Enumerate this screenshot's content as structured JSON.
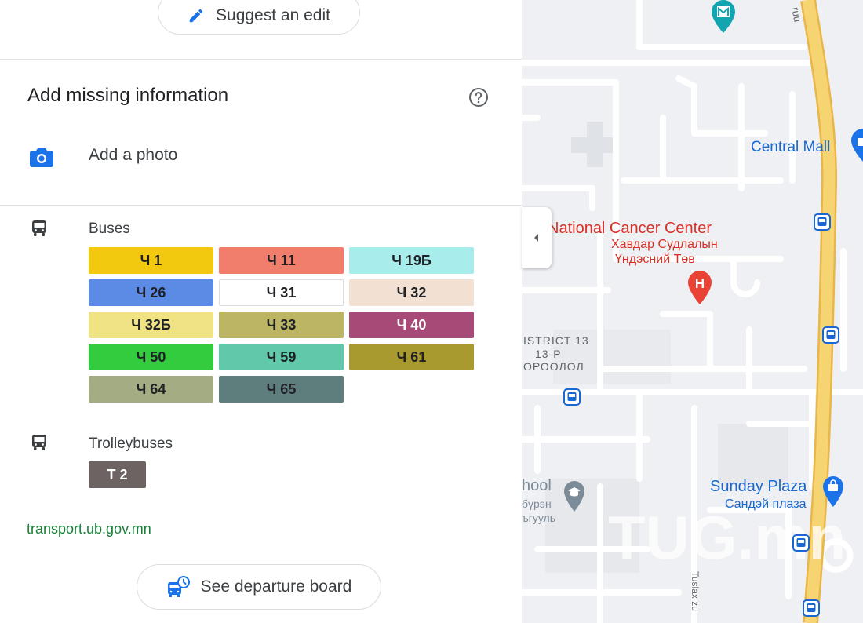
{
  "panel": {
    "suggest_edit_label": "Suggest an edit",
    "missing_info_title": "Add missing information",
    "add_photo_label": "Add a photo",
    "buses_label": "Buses",
    "buses": [
      {
        "label": "Ч 1",
        "bg": "#f2c90f",
        "fg": "#202124"
      },
      {
        "label": "Ч 11",
        "bg": "#f17d6d",
        "fg": "#202124"
      },
      {
        "label": "Ч 19Б",
        "bg": "#a8ecec",
        "fg": "#202124"
      },
      {
        "label": "Ч 26",
        "bg": "#5b8be5",
        "fg": "#202124"
      },
      {
        "label": "Ч 31",
        "bg": "#ffffff",
        "fg": "#202124",
        "border": "#dadce0"
      },
      {
        "label": "Ч 32",
        "bg": "#f2e0d2",
        "fg": "#202124"
      },
      {
        "label": "Ч 32Б",
        "bg": "#efe383",
        "fg": "#202124"
      },
      {
        "label": "Ч 33",
        "bg": "#bcb563",
        "fg": "#202124"
      },
      {
        "label": "Ч 40",
        "bg": "#a84a77",
        "fg": "#ffffff"
      },
      {
        "label": "Ч 50",
        "bg": "#33cc3e",
        "fg": "#202124"
      },
      {
        "label": "Ч 59",
        "bg": "#5fc9a9",
        "fg": "#202124"
      },
      {
        "label": "Ч 61",
        "bg": "#a89a2e",
        "fg": "#202124"
      },
      {
        "label": "Ч 64",
        "bg": "#a4ac84",
        "fg": "#202124"
      },
      {
        "label": "Ч 65",
        "bg": "#5e7e7d",
        "fg": "#202124"
      }
    ],
    "trolleybuses_label": "Trolleybuses",
    "trolleybus": {
      "label": "T 2",
      "bg": "#6e6363",
      "fg": "#ffffff"
    },
    "website": "transport.ub.gov.mn",
    "departure_board_label": "See departure board"
  },
  "map": {
    "road_label": "ruu",
    "central_mall": "Central Mall",
    "cancer_center_en": "National Cancer Center",
    "cancer_center_mn_1": "Хавдар Судлалын",
    "cancer_center_mn_2": "Үндэсний Төв",
    "district_1": "ISTRICT 13",
    "district_2": "13-Р",
    "district_3": "ОРООЛОЛ",
    "school_en": "hool",
    "school_mn_1": "бүрэн",
    "school_mn_2": "ъгууль",
    "sunday_plaza_en": "Sunday Plaza",
    "sunday_plaza_mn": "Сандэй плаза",
    "street_label": "Tuslax zu",
    "watermark": "TUG.mn",
    "hospital_letter": "H",
    "colors": {
      "major_road": "#f5cf68",
      "poi_blue": "#1a73e8",
      "poi_red": "#ea4335",
      "poi_gray": "#7b8b97",
      "transit_blue": "#1967d2",
      "teal": "#12a4af"
    }
  }
}
